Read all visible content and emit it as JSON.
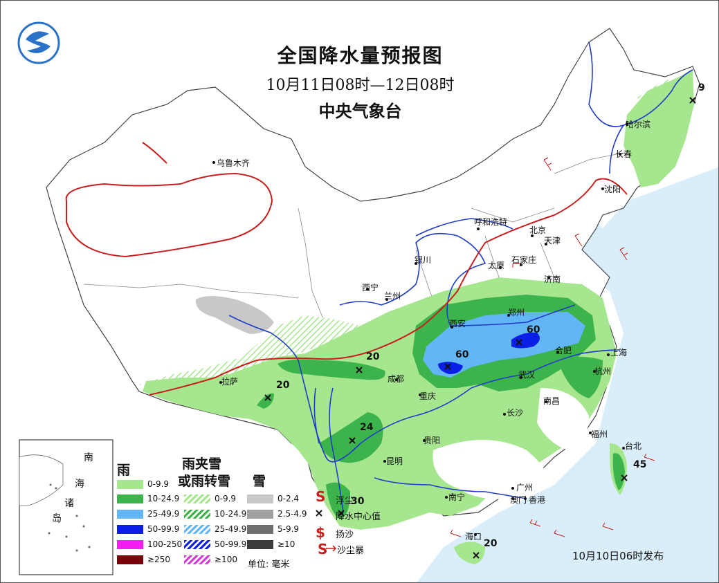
{
  "title": "全国降水量预报图",
  "period": "10月11日08时—12日08时",
  "agency": "中央气象台",
  "issued": "10月10日06时发布",
  "unit": "单位: 毫米",
  "cities": [
    {
      "key": "wulumuqi",
      "name": "乌鲁木齐"
    },
    {
      "key": "haerbin",
      "name": "哈尔滨"
    },
    {
      "key": "changchun",
      "name": "长春"
    },
    {
      "key": "shenyang",
      "name": "沈阳"
    },
    {
      "key": "huhehaote",
      "name": "呼和浩特"
    },
    {
      "key": "beijing",
      "name": "北京"
    },
    {
      "key": "tianjin",
      "name": "天津"
    },
    {
      "key": "yinchuan",
      "name": "银川"
    },
    {
      "key": "taiyuan",
      "name": "太原"
    },
    {
      "key": "shijiazhuang",
      "name": "石家庄"
    },
    {
      "key": "jinan",
      "name": "济南"
    },
    {
      "key": "xining",
      "name": "西宁"
    },
    {
      "key": "lanzhou",
      "name": "兰州"
    },
    {
      "key": "xian",
      "name": "西安"
    },
    {
      "key": "zhengzhou",
      "name": "郑州"
    },
    {
      "key": "hefei",
      "name": "合肥"
    },
    {
      "key": "shanghai",
      "name": "上海"
    },
    {
      "key": "hangzhou",
      "name": "杭州"
    },
    {
      "key": "nanjing",
      "name": "南京"
    },
    {
      "key": "wuhan",
      "name": "武汉"
    },
    {
      "key": "chengdu",
      "name": "成都"
    },
    {
      "key": "chongqing",
      "name": "重庆"
    },
    {
      "key": "lasa",
      "name": "拉萨"
    },
    {
      "key": "changsha",
      "name": "长沙"
    },
    {
      "key": "nanchang",
      "name": "南昌"
    },
    {
      "key": "fuzhou",
      "name": "福州"
    },
    {
      "key": "taibei",
      "name": "台北"
    },
    {
      "key": "guiyang",
      "name": "贵阳"
    },
    {
      "key": "kunming",
      "name": "昆明"
    },
    {
      "key": "nanning",
      "name": "南宁"
    },
    {
      "key": "guangzhou",
      "name": "广州"
    },
    {
      "key": "aomen",
      "name": "澳门"
    },
    {
      "key": "xianggang",
      "name": "香港"
    },
    {
      "key": "haikou",
      "name": "海口"
    }
  ],
  "max_values": [
    {
      "key": "heilongjiang",
      "value": "9"
    },
    {
      "key": "henan_east",
      "value": "60"
    },
    {
      "key": "hubei_north",
      "value": "60"
    },
    {
      "key": "sichuan_west",
      "value": "20"
    },
    {
      "key": "tibet",
      "value": "20"
    },
    {
      "key": "yunnan",
      "value": "24"
    },
    {
      "key": "yunnan_south",
      "value": "30"
    },
    {
      "key": "taiwan",
      "value": "45"
    },
    {
      "key": "hainan",
      "value": "20"
    }
  ],
  "legend": {
    "rain_header": "雨",
    "sleet_header_1": "雨夹雪",
    "sleet_header_2": "或雨转雪",
    "snow_header": "雪",
    "rain": [
      {
        "label": "0-9.9",
        "color": "#a6e68f"
      },
      {
        "label": "10-24.9",
        "color": "#3cb44b"
      },
      {
        "label": "25-49.9",
        "color": "#62b6f5"
      },
      {
        "label": "50-99.9",
        "color": "#0a1ee6"
      },
      {
        "label": "100-250",
        "color": "#f51ef0"
      },
      {
        "label": "≥250",
        "color": "#78000a"
      }
    ],
    "sleet": [
      {
        "label": "0-9.9",
        "color": "#a6e68f"
      },
      {
        "label": "10-24.9",
        "color": "#3cb44b"
      },
      {
        "label": "25-49.9",
        "color": "#62b6f5"
      },
      {
        "label": "50-99.9",
        "color": "#0a1ee6"
      },
      {
        "label": "≥100",
        "color": "#d23cd2"
      }
    ],
    "snow": [
      {
        "label": "0-2.4",
        "color": "#c8c8c8"
      },
      {
        "label": "2.5-4.9",
        "color": "#a0a0a0"
      },
      {
        "label": "5-9.9",
        "color": "#6e6e6e"
      },
      {
        "label": "≥10",
        "color": "#3c3c3c"
      }
    ],
    "symbols": [
      {
        "key": "fouchen",
        "label": "浮尘"
      },
      {
        "key": "center",
        "label": "降水中心值"
      },
      {
        "key": "yangsha",
        "label": "扬沙"
      },
      {
        "key": "shachenbao",
        "label": "沙尘暴"
      }
    ]
  },
  "inset": {
    "c1": "南",
    "c2": "海",
    "c3": "诸",
    "c4": "岛"
  }
}
